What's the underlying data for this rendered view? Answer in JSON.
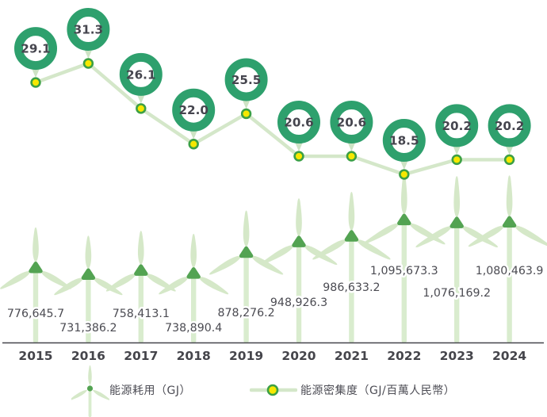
{
  "chart_data": {
    "type": "combo (pictorial wind-turbine bar + line with circular badges)",
    "title": "",
    "categories": [
      "2015",
      "2016",
      "2017",
      "2018",
      "2019",
      "2020",
      "2021",
      "2022",
      "2023",
      "2024"
    ],
    "series": [
      {
        "name": "能源耗用（GJ）",
        "type": "bar",
        "marker": "wind-turbine",
        "values": [
          776645.7,
          731386.2,
          758413.1,
          738890.4,
          878276.2,
          948926.3,
          986633.2,
          1095673.3,
          1076169.2,
          1080463.9
        ],
        "labels": [
          "776,645.7",
          "731,386.2",
          "758,413.1",
          "738,890.4",
          "878,276.2",
          "948,926.3",
          "986,633.2",
          "1,095,673.3",
          "1,076,169.2",
          "1,080,463.9"
        ]
      },
      {
        "name": "能源密集度（GJ/百萬人民幣）",
        "type": "line",
        "marker": "yellow-dot-in-green-ring",
        "values": [
          29.1,
          31.3,
          26.1,
          22.0,
          25.5,
          20.6,
          20.6,
          18.5,
          20.2,
          20.2
        ],
        "labels": [
          "29.1",
          "31.3",
          "26.1",
          "22.0",
          "25.5",
          "20.6",
          "20.6",
          "18.5",
          "20.2",
          "20.2"
        ]
      }
    ],
    "legend_position": "bottom",
    "grid": false,
    "x_axis_line": true
  },
  "legend": {
    "energy_use_label": "能源耗用（GJ）",
    "energy_intensity_label": "能源密集度（GJ/百萬人民幣）"
  },
  "colors": {
    "badge_ring": "#2ea06d",
    "badge_tail": "#cde3c4",
    "badge_text": "#45454e",
    "line": "#d4e7c9",
    "marker_fill": "#f6e800",
    "marker_stroke": "#3ca045",
    "blade": "#d5e8c8",
    "tower": "#d9ecce",
    "hub": "#53a352",
    "value_text": "#4b4b52",
    "axis_line": "#45454b",
    "year_text": "#45454b"
  }
}
